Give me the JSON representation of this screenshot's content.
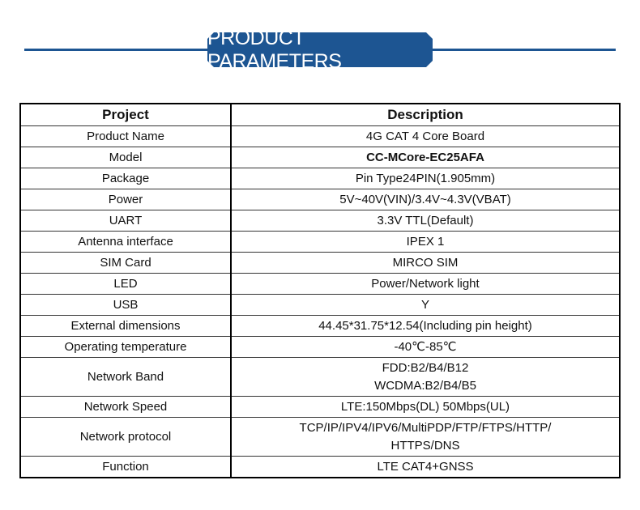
{
  "title": "PRODUCT PARAMETERS",
  "colors": {
    "brand": "#1d5592"
  },
  "table": {
    "headers": [
      "Project",
      "Description"
    ],
    "rows": [
      {
        "project": "Product Name",
        "description": "4G CAT 4 Core Board"
      },
      {
        "project": "Model",
        "description": "CC-MCore-EC25AFA"
      },
      {
        "project": "Package",
        "description": "Pin Type24PIN(1.905mm)"
      },
      {
        "project": "Power",
        "description": "5V~40V(VIN)/3.4V~4.3V(VBAT)"
      },
      {
        "project": "UART",
        "description": "3.3V TTL(Default)"
      },
      {
        "project": "Antenna interface",
        "description": "IPEX 1"
      },
      {
        "project": "SIM Card",
        "description": "MIRCO SIM"
      },
      {
        "project": "LED",
        "description": "Power/Network light"
      },
      {
        "project": "USB",
        "description": "Y"
      },
      {
        "project": "External dimensions",
        "description": "44.45*31.75*12.54(Including pin height)"
      },
      {
        "project": "Operating temperature",
        "description": "-40℃-85℃"
      },
      {
        "project": "Network Band",
        "description": "FDD:B2/B4/B12",
        "description2": "WCDMA:B2/B4/B5"
      },
      {
        "project": "Network Speed",
        "description": "LTE:150Mbps(DL)  50Mbps(UL)"
      },
      {
        "project": "Network protocol",
        "description": "TCP/IP/IPV4/IPV6/MultiPDP/FTP/FTPS/HTTP/",
        "description2": "HTTPS/DNS"
      },
      {
        "project": "Function",
        "description": "LTE  CAT4+GNSS"
      }
    ]
  }
}
